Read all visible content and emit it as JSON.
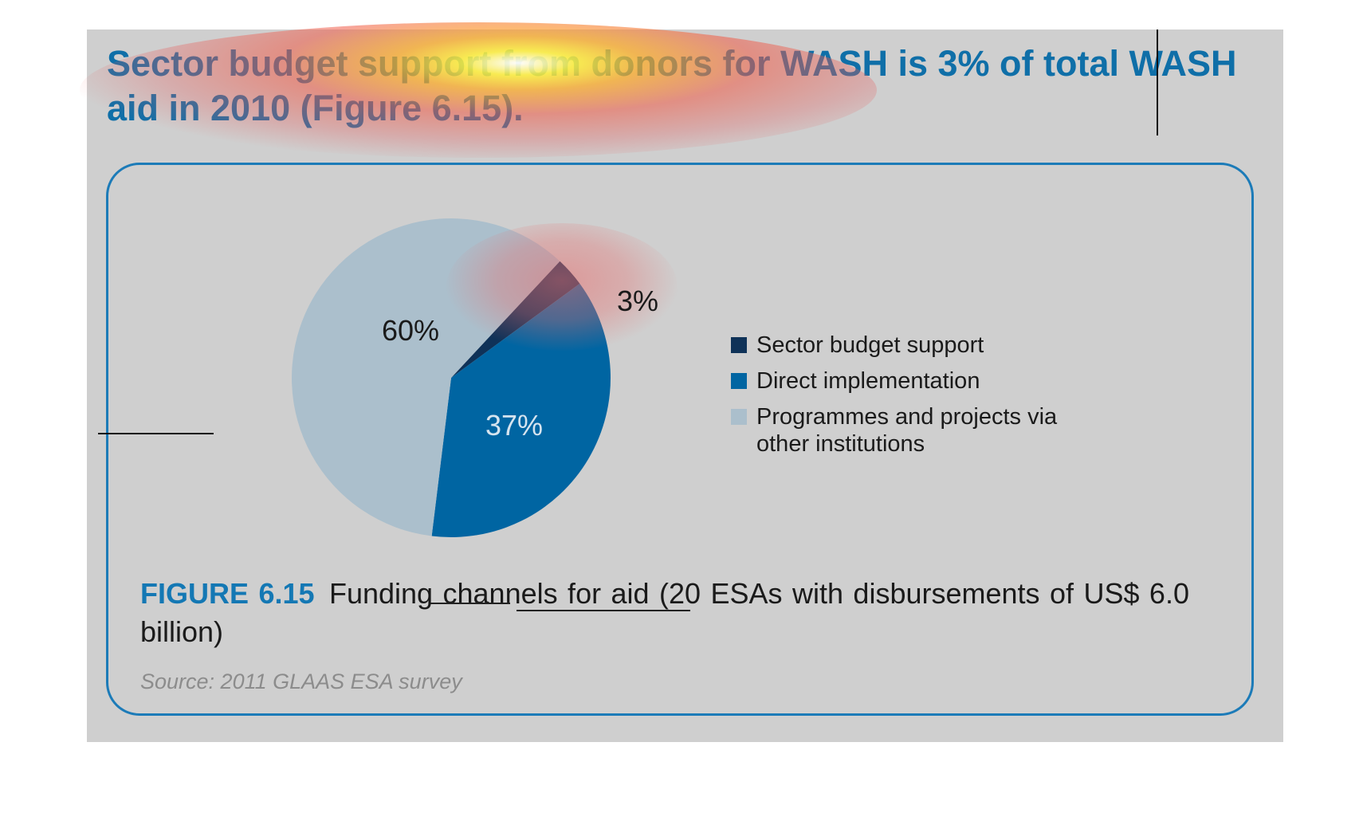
{
  "headline": "Sector budget support from donors for WASH is 3% of total WASH aid in 2010 (Figure 6.15).",
  "chart_data": {
    "type": "pie",
    "slices": [
      {
        "label": "Sector budget support",
        "value": 3,
        "value_label": "3%",
        "color": "#0f3258"
      },
      {
        "label": "Direct implementation",
        "value": 37,
        "value_label": "37%",
        "color": "#0065a2"
      },
      {
        "label": "Programmes and projects via other institutions",
        "value": 60,
        "value_label": "60%",
        "color": "#abbfcc"
      }
    ],
    "legend": [
      "Sector budget support",
      "Direct implementation",
      "Programmes and projects via other institutions"
    ],
    "legend_position": "right"
  },
  "caption": {
    "figure_label": "FIGURE 6.15",
    "text": "Funding channels for aid (20 ESAs with disbursements of US$ 6.0 billion)"
  },
  "source": "Source: 2011 GLAAS ESA survey",
  "colors": {
    "background": "#cfcfcf",
    "accent": "#1478b4",
    "frame": "#1c7bb8"
  }
}
